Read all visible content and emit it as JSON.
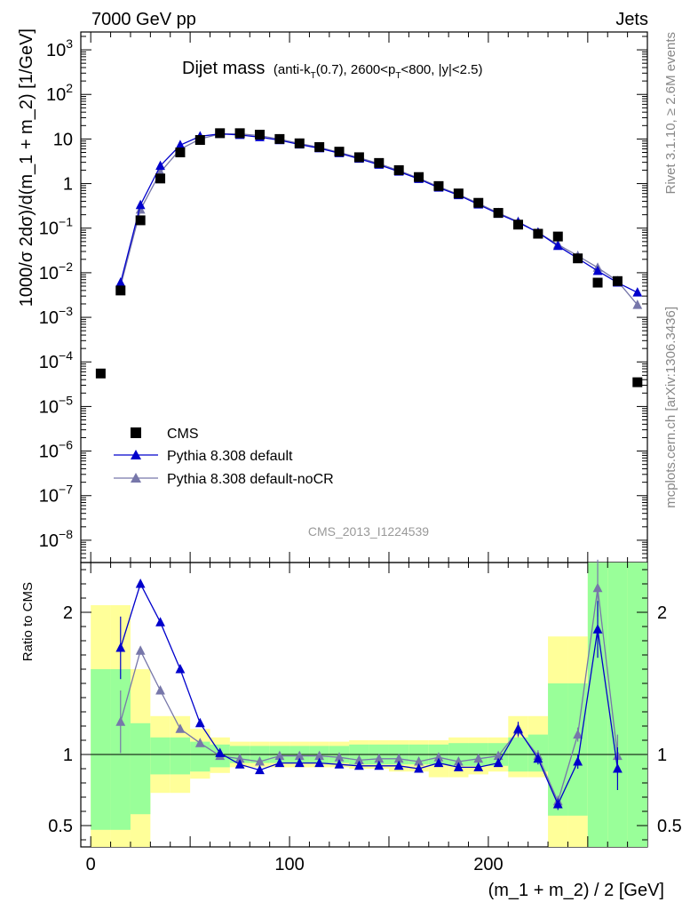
{
  "header": {
    "left": "7000 GeV pp",
    "right": "Jets"
  },
  "title": {
    "main": "Dijet mass",
    "detail_a": "(anti-k",
    "detail_sub_t1": "T",
    "detail_b": "(0.7), 2600<p",
    "detail_sub_t2": "T",
    "detail_c": "<800, |y|<2.5)"
  },
  "side_labels": {
    "rivet": "Rivet 3.1.10, ≥ 2.6M events",
    "mcplots": "mcplots.cern.ch [arXiv:1306.3436]"
  },
  "analysis_id": "CMS_2013_I1224539",
  "axes": {
    "ylabel_main": "1000/σ 2dσ)/d(m_1 + m_2) [1/GeV]",
    "ylabel_ratio": "Ratio to CMS",
    "xlabel": "(m_1 + m_2) / 2 [GeV]",
    "x_ticks": [
      "0",
      "100",
      "200"
    ],
    "y_ticks_main": [
      {
        "base": "10",
        "exp": "3"
      },
      {
        "base": "10",
        "exp": "2"
      },
      {
        "base": "10",
        "exp": ""
      },
      {
        "base": "1",
        "exp": ""
      },
      {
        "base": "10",
        "exp": "−1"
      },
      {
        "base": "10",
        "exp": "−2"
      },
      {
        "base": "10",
        "exp": "−3"
      },
      {
        "base": "10",
        "exp": "−4"
      },
      {
        "base": "10",
        "exp": "−5"
      },
      {
        "base": "10",
        "exp": "−6"
      },
      {
        "base": "10",
        "exp": "−7"
      },
      {
        "base": "10",
        "exp": "−8"
      }
    ],
    "y_ticks_ratio": [
      "2",
      "1",
      "0.5"
    ]
  },
  "legend": [
    {
      "label": "CMS",
      "marker": "square",
      "color": "#000000"
    },
    {
      "label": "Pythia 8.308 default",
      "marker": "triangle",
      "color": "#0000cc"
    },
    {
      "label": "Pythia 8.308 default-noCR",
      "marker": "triangle",
      "color": "#7777aa"
    }
  ],
  "chart_data": {
    "type": "line",
    "xlim": [
      -5,
      280
    ],
    "ylim_main_log10": [
      -8.5,
      3.4
    ],
    "ylim_ratio": [
      0.35,
      2.35
    ],
    "log_y": true,
    "grid": false,
    "legend_position": "bottom-left",
    "x": [
      5,
      15,
      25,
      35,
      45,
      55,
      65,
      75,
      85,
      95,
      105,
      115,
      125,
      135,
      145,
      155,
      165,
      175,
      185,
      195,
      205,
      215,
      225,
      235,
      245,
      255,
      265,
      275
    ],
    "series": [
      {
        "name": "CMS",
        "color": "#000000",
        "values": [
          5.5e-05,
          0.004,
          0.15,
          1.3,
          5.0,
          9.5,
          13.5,
          13.5,
          12.5,
          10.0,
          8.0,
          6.6,
          5.2,
          3.9,
          2.9,
          2.0,
          1.4,
          0.88,
          0.6,
          0.37,
          0.22,
          0.12,
          0.075,
          0.065,
          0.021,
          0.006,
          0.0065,
          3.5e-05
        ]
      },
      {
        "name": "Pythia 8.308 default",
        "color": "#0000cc",
        "x": [
          15,
          25,
          35,
          45,
          55,
          65,
          75,
          85,
          95,
          105,
          115,
          125,
          135,
          145,
          155,
          165,
          175,
          185,
          195,
          205,
          215,
          225,
          235,
          245,
          255,
          265,
          275
        ],
        "values": [
          0.006,
          0.33,
          2.5,
          7.3,
          11.5,
          13.0,
          12.3,
          11.0,
          9.4,
          7.5,
          6.2,
          4.8,
          3.6,
          2.65,
          1.85,
          1.27,
          0.81,
          0.55,
          0.34,
          0.21,
          0.135,
          0.08,
          0.04,
          0.021,
          0.011,
          0.006,
          0.0036
        ]
      },
      {
        "name": "Pythia 8.308 default-noCR",
        "color": "#7777aa",
        "x": [
          15,
          25,
          35,
          45,
          55,
          65,
          75,
          85,
          95,
          105,
          115,
          125,
          135,
          145,
          155,
          165,
          175,
          185,
          195,
          205,
          215,
          225,
          235,
          245,
          255,
          265,
          275
        ],
        "values": [
          0.005,
          0.26,
          1.8,
          5.9,
          10.0,
          13.0,
          13.0,
          11.9,
          9.9,
          7.9,
          6.5,
          5.0,
          3.8,
          2.8,
          1.95,
          1.32,
          0.85,
          0.57,
          0.36,
          0.22,
          0.14,
          0.08,
          0.043,
          0.024,
          0.013,
          0.0065,
          0.0019
        ]
      }
    ],
    "ratio": {
      "x": [
        15,
        25,
        35,
        45,
        55,
        65,
        75,
        85,
        95,
        105,
        115,
        125,
        135,
        145,
        155,
        165,
        175,
        185,
        195,
        205,
        215,
        225,
        235,
        245,
        255,
        265
      ],
      "default": [
        1.75,
        2.2,
        1.93,
        1.6,
        1.22,
        1.01,
        0.93,
        0.89,
        0.94,
        0.94,
        0.94,
        0.93,
        0.92,
        0.92,
        0.92,
        0.9,
        0.94,
        0.91,
        0.91,
        0.94,
        1.18,
        0.97,
        0.65,
        0.95,
        1.88,
        0.9
      ],
      "default_err": [
        0.22,
        0,
        0,
        0,
        0,
        0,
        0,
        0,
        0,
        0,
        0,
        0,
        0,
        0,
        0,
        0,
        0,
        0,
        0,
        0,
        0.05,
        0.04,
        0.04,
        0.05,
        0.2,
        0.15
      ],
      "noCR": [
        1.23,
        1.73,
        1.45,
        1.18,
        1.08,
        0.99,
        0.97,
        0.95,
        0.99,
        0.99,
        0.99,
        0.98,
        0.96,
        0.97,
        0.97,
        0.95,
        0.98,
        0.95,
        0.97,
        0.99,
        1.17,
        0.99,
        0.67,
        1.14,
        2.17,
        0.99
      ],
      "noCR_err": [
        0.22,
        0,
        0,
        0,
        0,
        0,
        0,
        0,
        0,
        0,
        0,
        0,
        0,
        0,
        0,
        0,
        0,
        0,
        0,
        0,
        0.05,
        0.04,
        0.04,
        0.05,
        0.2,
        0.15
      ],
      "bands": {
        "edges": [
          0,
          10,
          20,
          30,
          40,
          50,
          60,
          70,
          80,
          90,
          100,
          110,
          120,
          130,
          140,
          150,
          160,
          170,
          180,
          190,
          200,
          210,
          220,
          230,
          240,
          250,
          260,
          270,
          280
        ],
        "green_lo": [
          0.47,
          0.47,
          0.58,
          0.86,
          0.86,
          0.88,
          0.91,
          0.94,
          0.94,
          0.94,
          0.94,
          0.94,
          0.94,
          0.93,
          0.93,
          0.93,
          0.93,
          0.93,
          0.92,
          0.92,
          0.92,
          0.88,
          0.88,
          0.57,
          0.57,
          0.35,
          0.35,
          0.35
        ],
        "green_hi": [
          1.6,
          1.6,
          1.22,
          1.12,
          1.12,
          1.09,
          1.07,
          1.06,
          1.06,
          1.06,
          1.06,
          1.06,
          1.06,
          1.07,
          1.07,
          1.07,
          1.07,
          1.07,
          1.08,
          1.08,
          1.08,
          1.12,
          1.14,
          1.5,
          1.5,
          2.35,
          2.35,
          2.35
        ],
        "yellow_lo": [
          0.35,
          0.35,
          0.35,
          0.73,
          0.73,
          0.83,
          0.87,
          0.91,
          0.91,
          0.91,
          0.91,
          0.91,
          0.91,
          0.9,
          0.9,
          0.88,
          0.88,
          0.84,
          0.84,
          0.86,
          0.88,
          0.84,
          0.84,
          0.35,
          0.35,
          0.35,
          0.35,
          0.35
        ],
        "yellow_hi": [
          2.05,
          2.05,
          1.6,
          1.27,
          1.27,
          1.18,
          1.12,
          1.09,
          1.09,
          1.09,
          1.09,
          1.09,
          1.09,
          1.1,
          1.1,
          1.1,
          1.1,
          1.1,
          1.12,
          1.12,
          1.12,
          1.27,
          1.27,
          1.83,
          1.83,
          2.35,
          2.35,
          2.35
        ]
      }
    }
  }
}
